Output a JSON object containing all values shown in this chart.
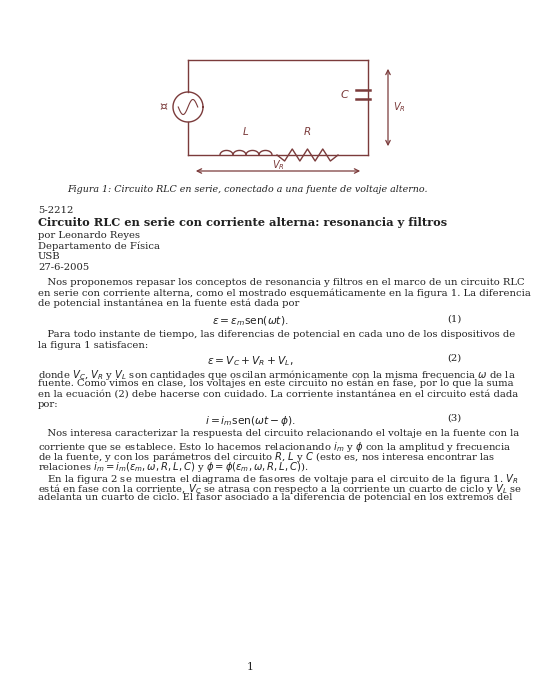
{
  "bg_color": "#ffffff",
  "text_color": "#222222",
  "circuit_color": "#7B3B3B",
  "fig_caption": "Figura 1: Circuito RLC en serie, conectado a una fuente de voltaje alterno.",
  "course_number": "5-2212",
  "title": "Circuito RLC en serie con corriente alterna: resonancia y filtros",
  "author": "por Leonardo Reyes",
  "department": "Departamento de Física",
  "institution": "USB",
  "date": "27-6-2005",
  "paragraph1": "   Nos proponemos repasar los conceptos de resonancia y filtros en el marco de un circuito RLC en serie con corriente alterna, como el mostrado esquemáticamente en la figura 1. La diferencia de potencial instantánea en la fuente está dada por",
  "eq1": "$\\epsilon = \\epsilon_m\\mathrm{sen}(\\omega t).$",
  "eq1_num": "(1)",
  "paragraph2": "   Para todo instante de tiempo, las diferencias de potencial en cada uno de los dispositivos de la figura 1 satisfacen:",
  "eq2": "$\\epsilon = V_C + V_R + V_L,$",
  "eq2_num": "(2)",
  "paragraph3_lines": [
    "donde $V_C$, $V_R$ y $V_L$ son cantidades que oscilan armónicamente con la misma frecuencia $\\omega$ de la",
    "fuente. Como vimos en clase, los voltajes en este circuito no están en fase, por lo que la suma",
    "en la ecuación (2) debe hacerse con cuidado. La corriente instantánea en el circuito está dada",
    "por:"
  ],
  "eq3": "$i = i_m\\mathrm{sen}(\\omega t - \\phi).$",
  "eq3_num": "(3)",
  "paragraph4_lines": [
    "   Nos interesa caracterizar la respuesta del circuito relacionando el voltaje en la fuente con la",
    "corriente que se establece. Esto lo hacemos relacionando $i_m$ y $\\phi$ con la amplitud y frecuencia",
    "de la fuente, y con los parámetros del circuito $R$, $L$ y $C$ (esto es, nos interesa encontrar las",
    "relaciones $i_m = i_m(\\epsilon_m, \\omega, R, L, C)$ y $\\phi = \\phi(\\epsilon_m, \\omega, R, L, C)$)."
  ],
  "paragraph5_lines": [
    "   En la figura 2 se muestra el diagrama de fasores de voltaje para el circuito de la figura 1. $V_R$",
    "está en fase con la corriente, $V_C$ se atrasa con respecto a la corriente un cuarto de ciclo y $V_L$ se",
    "adelanta un cuarto de ciclo. El fasor asociado a la diferencia de potencial en los extremos del"
  ],
  "page_number": "1"
}
